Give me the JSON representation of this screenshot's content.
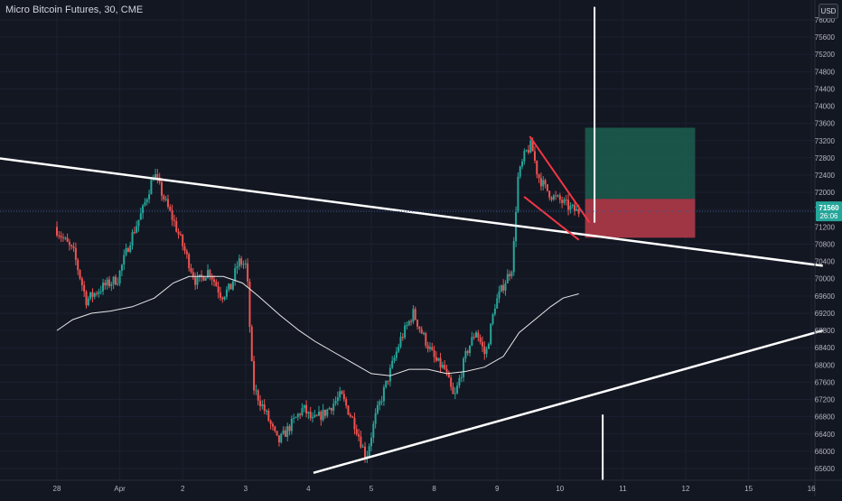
{
  "header": {
    "title": "Micro Bitcoin Futures, 30, CME",
    "currency": "USD"
  },
  "chart_data": {
    "type": "candlestick",
    "instrument": "Micro Bitcoin Futures",
    "interval": "30",
    "exchange": "CME",
    "y_ticks": [
      65600,
      66000,
      66400,
      66800,
      67200,
      67600,
      68000,
      68400,
      68800,
      69200,
      69600,
      70000,
      70400,
      70800,
      71200,
      71600,
      72000,
      72400,
      72800,
      73200,
      73600,
      74000,
      74400,
      74800,
      75200,
      75600,
      76000
    ],
    "ylim": [
      65300,
      76300
    ],
    "x_ticks": [
      "28",
      "Apr",
      "2",
      "3",
      "4",
      "5",
      "8",
      "9",
      "10",
      "11",
      "12",
      "15",
      "16"
    ],
    "current_price": "71560",
    "countdown": "26:06",
    "colors": {
      "up": "#26a69a",
      "down": "#ef5350",
      "background": "#131722",
      "grid": "#1e2230"
    },
    "price_path": [
      [
        0.0,
        71200
      ],
      [
        0.3,
        70600
      ],
      [
        0.5,
        69500
      ],
      [
        0.75,
        69800
      ],
      [
        1.0,
        70000
      ],
      [
        1.2,
        70900
      ],
      [
        1.4,
        71600
      ],
      [
        1.58,
        72450
      ],
      [
        1.75,
        71800
      ],
      [
        1.9,
        71300
      ],
      [
        2.05,
        70700
      ],
      [
        2.25,
        69900
      ],
      [
        2.45,
        70200
      ],
      [
        2.65,
        69600
      ],
      [
        2.8,
        69800
      ],
      [
        2.92,
        70400
      ],
      [
        3.05,
        70300
      ],
      [
        3.15,
        67500
      ],
      [
        3.35,
        66900
      ],
      [
        3.55,
        66200
      ],
      [
        3.75,
        66600
      ],
      [
        3.95,
        67000
      ],
      [
        4.1,
        66700
      ],
      [
        4.3,
        66900
      ],
      [
        4.55,
        67300
      ],
      [
        4.78,
        66600
      ],
      [
        4.95,
        65850
      ],
      [
        5.1,
        66800
      ],
      [
        5.3,
        67700
      ],
      [
        5.5,
        68600
      ],
      [
        5.7,
        69200
      ],
      [
        5.85,
        68700
      ],
      [
        6.05,
        68100
      ],
      [
        6.2,
        67900
      ],
      [
        6.35,
        67200
      ],
      [
        6.55,
        68300
      ],
      [
        6.7,
        68800
      ],
      [
        6.85,
        68200
      ],
      [
        7.0,
        69400
      ],
      [
        7.15,
        69900
      ],
      [
        7.28,
        70300
      ],
      [
        7.36,
        72300
      ],
      [
        7.48,
        72900
      ],
      [
        7.58,
        73100
      ],
      [
        7.68,
        72400
      ],
      [
        7.8,
        72100
      ],
      [
        7.92,
        71900
      ],
      [
        8.05,
        71800
      ],
      [
        8.18,
        71650
      ],
      [
        8.3,
        71560
      ]
    ],
    "moving_average": [
      [
        0.0,
        68800
      ],
      [
        0.25,
        69050
      ],
      [
        0.55,
        69200
      ],
      [
        0.85,
        69250
      ],
      [
        1.2,
        69350
      ],
      [
        1.55,
        69550
      ],
      [
        1.85,
        69900
      ],
      [
        2.1,
        70050
      ],
      [
        2.4,
        70050
      ],
      [
        2.65,
        70050
      ],
      [
        2.95,
        69900
      ],
      [
        3.2,
        69600
      ],
      [
        3.55,
        69150
      ],
      [
        3.85,
        68800
      ],
      [
        4.1,
        68550
      ],
      [
        4.4,
        68300
      ],
      [
        4.7,
        68050
      ],
      [
        5.0,
        67800
      ],
      [
        5.3,
        67750
      ],
      [
        5.6,
        67900
      ],
      [
        5.9,
        67900
      ],
      [
        6.2,
        67800
      ],
      [
        6.5,
        67850
      ],
      [
        6.8,
        67950
      ],
      [
        7.1,
        68200
      ],
      [
        7.35,
        68750
      ],
      [
        7.6,
        69050
      ],
      [
        7.85,
        69350
      ],
      [
        8.05,
        69550
      ],
      [
        8.3,
        69650
      ]
    ],
    "trendlines": [
      {
        "points": [
          [
            -0.97,
            72800
          ],
          [
            12.18,
            70300
          ]
        ]
      },
      {
        "points": [
          [
            4.08,
            65500
          ],
          [
            12.18,
            68800
          ]
        ]
      },
      {
        "points": [
          [
            7.52,
            73300
          ],
          [
            8.47,
            71300
          ]
        ],
        "color": "#f23645"
      },
      {
        "points": [
          [
            7.43,
            71900
          ],
          [
            8.3,
            70900
          ]
        ],
        "color": "#f23645"
      }
    ],
    "vertical_lines": [
      {
        "x": 8.55,
        "y1": 76300,
        "y2": 71300
      },
      {
        "x": 8.68,
        "y1": 66850,
        "y2": 65300
      }
    ],
    "position": {
      "x_start": 8.4,
      "x_end": 10.15,
      "entry": 71850,
      "target": 73500,
      "stop": 70950,
      "profit_color": "#1c5b4e",
      "loss_color": "#b03a48"
    }
  }
}
